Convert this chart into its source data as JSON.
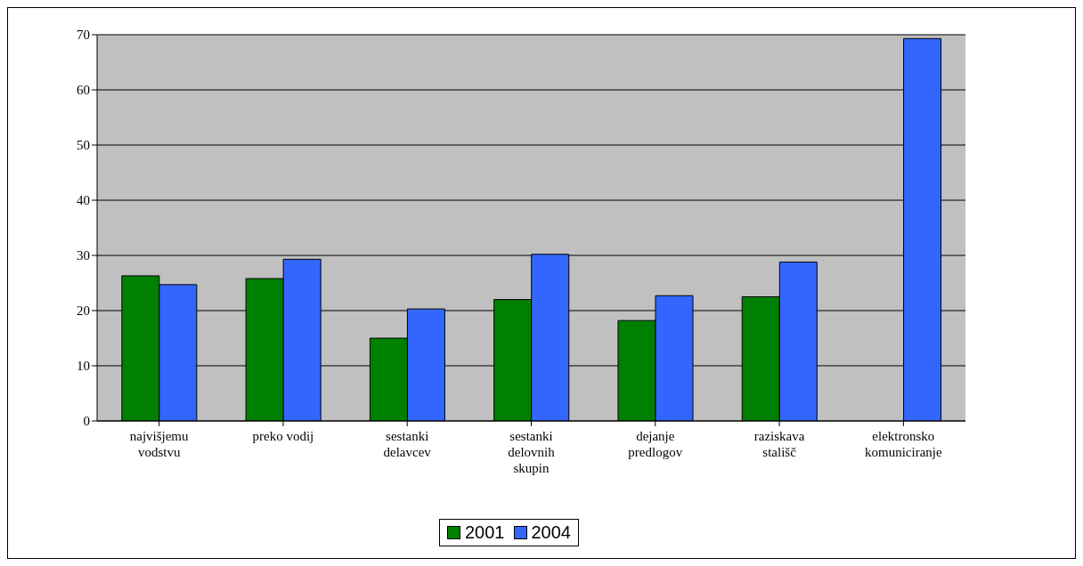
{
  "chart_data": {
    "type": "bar",
    "categories": [
      "najvišjemu vodstvu",
      "preko vodij",
      "sestanki delavcev",
      "sestanki delovnih skupin",
      "dejanje predlogov",
      "raziskava stališč",
      "elektronsko komuniciranje"
    ],
    "series": [
      {
        "name": "2001",
        "color": "#008000",
        "values": [
          26.3,
          25.8,
          15,
          22,
          18.2,
          22.5,
          null
        ]
      },
      {
        "name": "2004",
        "color": "#3366ff",
        "values": [
          24.7,
          29.3,
          20.3,
          30.2,
          22.7,
          28.8,
          69.3
        ]
      }
    ],
    "ylim": [
      0,
      70
    ],
    "yticks": [
      0,
      10,
      20,
      30,
      40,
      50,
      60,
      70
    ],
    "grid": "y",
    "legend": "bottom"
  }
}
